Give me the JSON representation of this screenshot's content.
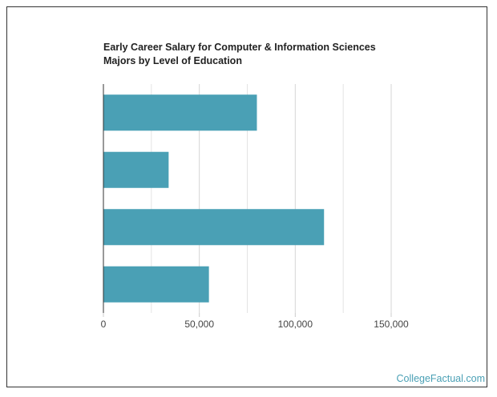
{
  "chart_data": {
    "type": "hbar",
    "title": "Early Career Salary for Computer & Information Sciences Majors by Level of Education",
    "categories": [
      null,
      null,
      null,
      null
    ],
    "values": [
      80000,
      34000,
      115000,
      55000
    ],
    "color": "#4aa0b5",
    "xlim": [
      0,
      150000
    ],
    "xticks": [
      0,
      {
        "value": 50000,
        "label": "50,000"
      },
      {
        "value": 100000,
        "label": "100,000"
      },
      {
        "value": 150000,
        "label": "150,000"
      }
    ],
    "minor_xticks": [
      25000,
      75000,
      125000
    ],
    "grid": true,
    "source": "CollegeFactual.com"
  }
}
